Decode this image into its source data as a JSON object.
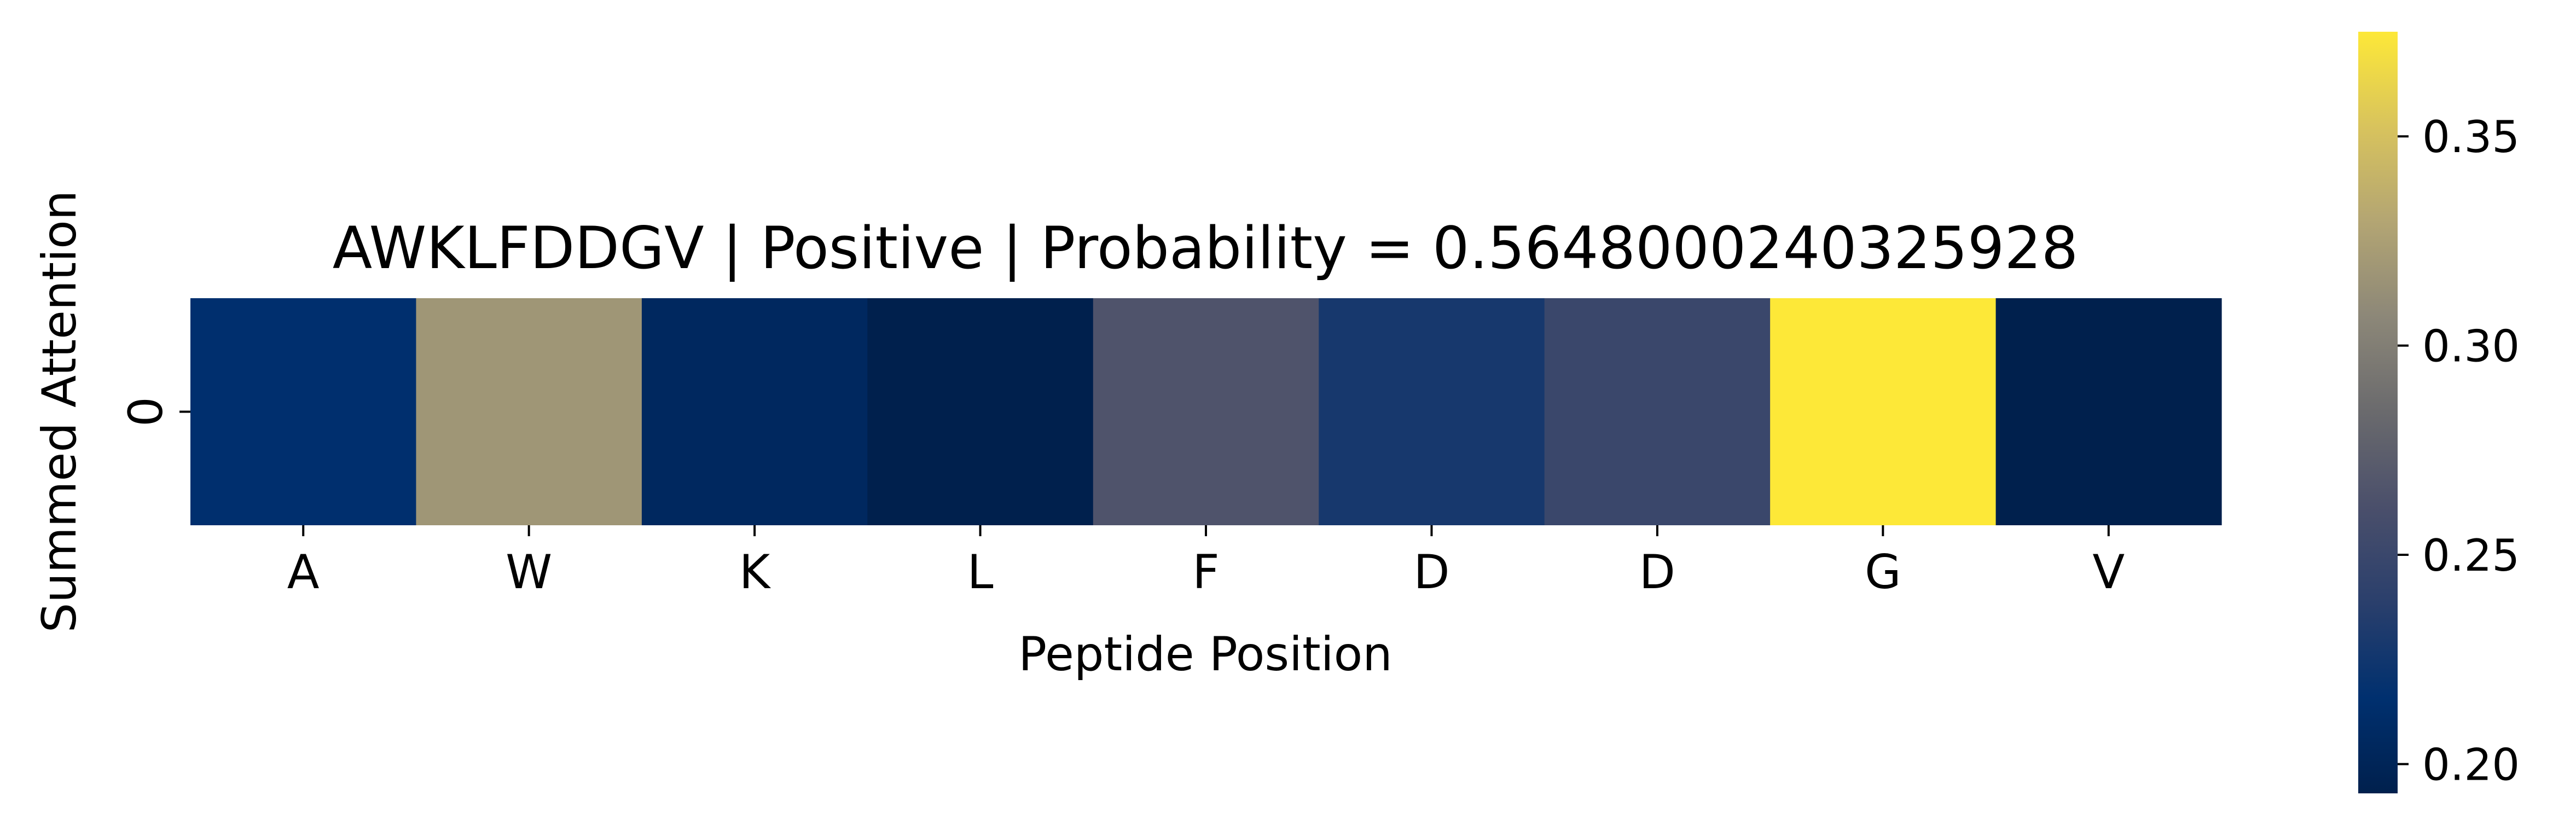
{
  "chart_data": {
    "type": "heatmap",
    "title": "AWKLFDDGV | Positive | Probability = 0.5648000240325928",
    "xlabel": "Peptide Position",
    "ylabel": "Summed Attention",
    "x_categories": [
      "A",
      "W",
      "K",
      "L",
      "F",
      "D",
      "D",
      "G",
      "V"
    ],
    "y_categories": [
      "0"
    ],
    "values": [
      [
        0.215,
        0.318,
        0.205,
        0.193,
        0.265,
        0.228,
        0.25,
        0.375,
        0.193
      ]
    ],
    "colorscale": "cividis",
    "colorscale_stops": [
      "#00204d",
      "#00306f",
      "#2a3f6c",
      "#4a4f6b",
      "#6a6a6d",
      "#8c8778",
      "#b3a573",
      "#d8c35d",
      "#fde838"
    ],
    "colorbar": {
      "vmin": 0.193,
      "vmax": 0.375,
      "ticks": [
        0.2,
        0.25,
        0.3,
        0.35
      ],
      "tick_labels": [
        "0.20",
        "0.25",
        "0.30",
        "0.35"
      ]
    },
    "grid": false,
    "legend": "colorbar-right"
  }
}
